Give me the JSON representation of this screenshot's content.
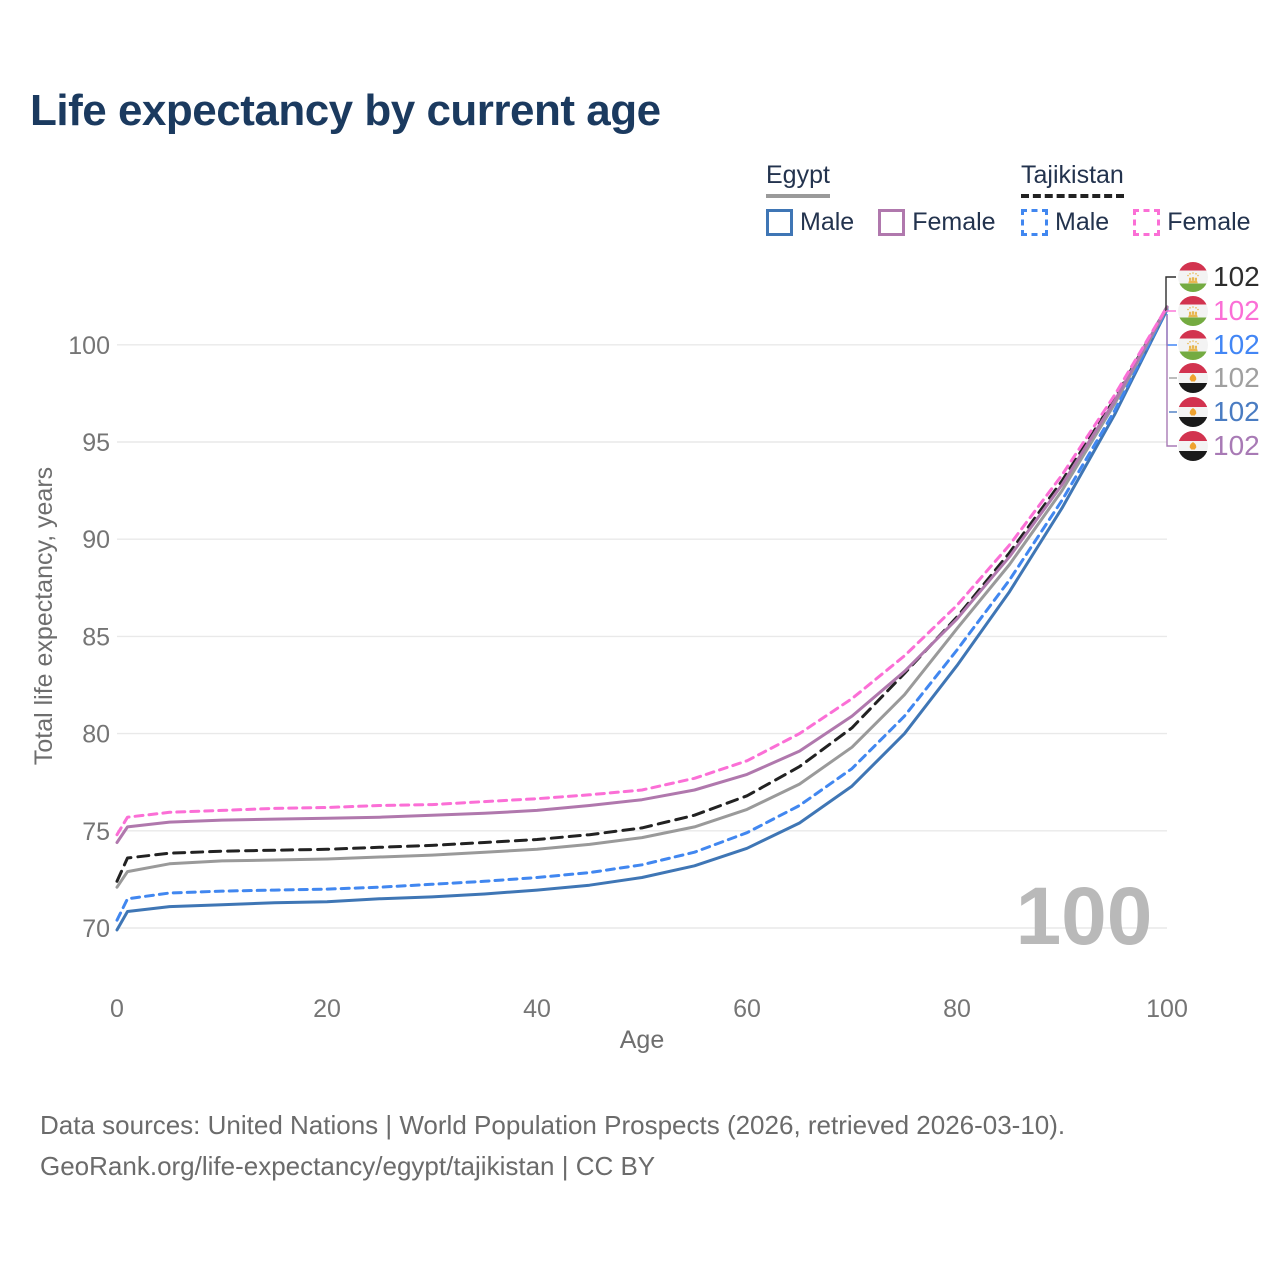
{
  "title": "Life expectancy by current age",
  "legend": {
    "egypt": {
      "label": "Egypt",
      "male": "Male",
      "female": "Female"
    },
    "tajikistan": {
      "label": "Tajikistan",
      "male": "Male",
      "female": "Female"
    }
  },
  "footer": {
    "line1": "Data sources: United Nations | World Population Prospects (2026, retrieved 2026-03-10).",
    "line2": "GeoRank.org/life-expectancy/egypt/tajikistan | CC BY"
  },
  "colors": {
    "title_text": "#1b3a5f",
    "legend_text": "#23334e",
    "axis_text": "#757575",
    "gridline": "#e9e9e9",
    "watermark": "#b9b9b9",
    "footer_text": "#6b6b6b"
  },
  "chart_data": {
    "type": "line",
    "title": "Life expectancy by current age",
    "xlabel": "Age",
    "ylabel": "Total life expectancy, years",
    "xlim": [
      0,
      100
    ],
    "ylim": [
      70,
      102
    ],
    "x_ticks": [
      0,
      20,
      40,
      60,
      80,
      100
    ],
    "y_ticks": [
      70,
      75,
      80,
      85,
      90,
      95,
      100
    ],
    "grid": "horizontal-only",
    "legend_position": "top-right",
    "hover_age_indicator": "100",
    "ages": [
      0,
      1,
      5,
      10,
      15,
      20,
      25,
      30,
      35,
      40,
      45,
      50,
      55,
      60,
      65,
      70,
      75,
      80,
      85,
      90,
      95,
      100
    ],
    "series": [
      {
        "id": "tajikistan-total",
        "country": "Tajikistan",
        "group": "Total",
        "line_style": "dashed",
        "color": "#222222",
        "label_color": "#2d2d2d",
        "flag": "tajikistan",
        "end_value": "102",
        "values": [
          72.4,
          73.6,
          73.85,
          73.95,
          74.0,
          74.05,
          74.15,
          74.25,
          74.4,
          74.55,
          74.8,
          75.15,
          75.8,
          76.8,
          78.3,
          80.3,
          83.1,
          86.0,
          89.3,
          93.0,
          97.2,
          101.95
        ]
      },
      {
        "id": "tajikistan-female",
        "country": "Tajikistan",
        "group": "Female",
        "line_style": "dashed",
        "color": "#fb6fd6",
        "label_color": "#fb6fd6",
        "flag": "tajikistan",
        "end_value": "102",
        "values": [
          74.8,
          75.7,
          75.95,
          76.05,
          76.15,
          76.2,
          76.3,
          76.35,
          76.5,
          76.65,
          76.85,
          77.1,
          77.7,
          78.6,
          80.0,
          81.8,
          84.0,
          86.6,
          89.7,
          93.3,
          97.4,
          101.95
        ]
      },
      {
        "id": "tajikistan-male",
        "country": "Tajikistan",
        "group": "Male",
        "line_style": "dashed",
        "color": "#4187f0",
        "label_color": "#4286f5",
        "flag": "tajikistan",
        "end_value": "102",
        "values": [
          70.4,
          71.5,
          71.8,
          71.9,
          71.95,
          72.0,
          72.1,
          72.25,
          72.4,
          72.6,
          72.85,
          73.25,
          73.9,
          74.9,
          76.3,
          78.2,
          80.9,
          84.3,
          87.9,
          92.0,
          96.6,
          101.85
        ]
      },
      {
        "id": "egypt-total",
        "country": "Egypt",
        "group": "Total",
        "line_style": "solid",
        "color": "#9a9a9a",
        "label_color": "#a0a0a0",
        "flag": "egypt",
        "end_value": "102",
        "values": [
          72.1,
          72.9,
          73.3,
          73.45,
          73.5,
          73.55,
          73.65,
          73.75,
          73.9,
          74.05,
          74.3,
          74.65,
          75.2,
          76.1,
          77.4,
          79.3,
          82.0,
          85.4,
          88.7,
          92.5,
          96.95,
          101.9
        ]
      },
      {
        "id": "egypt-male",
        "country": "Egypt",
        "group": "Male",
        "line_style": "solid",
        "color": "#3f76b5",
        "label_color": "#4a7cc2",
        "flag": "egypt",
        "end_value": "102",
        "values": [
          69.9,
          70.85,
          71.1,
          71.2,
          71.3,
          71.35,
          71.5,
          71.6,
          71.75,
          71.95,
          72.2,
          72.6,
          73.2,
          74.1,
          75.4,
          77.3,
          80.0,
          83.5,
          87.3,
          91.6,
          96.4,
          101.8
        ]
      },
      {
        "id": "egypt-female",
        "country": "Egypt",
        "group": "Female",
        "line_style": "solid",
        "color": "#b078ad",
        "label_color": "#a87ab5",
        "flag": "egypt",
        "end_value": "102",
        "values": [
          74.4,
          75.2,
          75.45,
          75.55,
          75.6,
          75.65,
          75.7,
          75.8,
          75.9,
          76.05,
          76.3,
          76.6,
          77.1,
          77.9,
          79.1,
          80.9,
          83.2,
          85.9,
          89.1,
          92.8,
          97.1,
          101.95
        ]
      }
    ]
  }
}
